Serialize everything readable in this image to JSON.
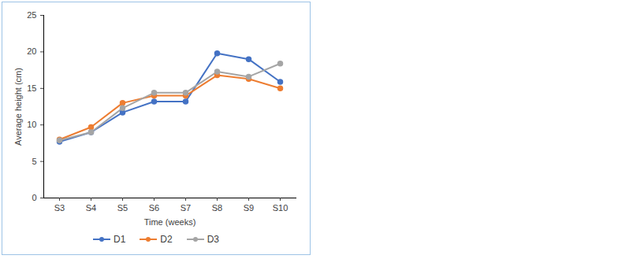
{
  "chart_data": {
    "type": "line",
    "x_label": "Time (weeks)",
    "y_label": "Average height (cm)",
    "categories": [
      "S3",
      "S4",
      "S5",
      "S6",
      "S7",
      "S8",
      "S9",
      "S10"
    ],
    "series": [
      {
        "name": "D1",
        "color": "#4472c4",
        "values": [
          7.7,
          9.0,
          11.7,
          13.2,
          13.2,
          19.8,
          19.0,
          15.9
        ]
      },
      {
        "name": "D2",
        "color": "#ed7d31",
        "values": [
          8.0,
          9.7,
          13.0,
          14.0,
          14.0,
          16.8,
          16.3,
          15.0
        ]
      },
      {
        "name": "D3",
        "color": "#a5a5a5",
        "values": [
          7.9,
          9.0,
          12.3,
          14.4,
          14.4,
          17.3,
          16.6,
          18.4
        ]
      }
    ],
    "ylim": [
      0,
      25
    ],
    "yticks": [
      0,
      5,
      10,
      15,
      20,
      25
    ],
    "grid": false,
    "legend": "bottom",
    "marker": "circle"
  }
}
